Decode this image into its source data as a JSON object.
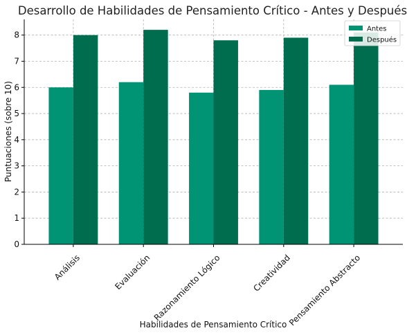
{
  "chart_data": {
    "type": "bar",
    "title": "Desarrollo de Habilidades de Pensamiento Crítico - Antes y Después",
    "xlabel": "Habilidades de Pensamiento Crítico",
    "ylabel": "Puntuaciones (sobre 10)",
    "categories": [
      "Análisis",
      "Evaluación",
      "Razonamiento Lógico",
      "Creatividad",
      "Pensamiento Abstracto"
    ],
    "series": [
      {
        "name": "Antes",
        "values": [
          6.0,
          6.2,
          5.8,
          5.9,
          6.1
        ],
        "color": "#009474"
      },
      {
        "name": "Después",
        "values": [
          8.0,
          8.2,
          7.8,
          7.9,
          8.1
        ],
        "color": "#006e4e"
      }
    ],
    "ylim": [
      0,
      8.6
    ],
    "yticks": [
      0,
      1,
      2,
      3,
      4,
      5,
      6,
      7,
      8
    ],
    "grid": true,
    "legend": "top-right"
  }
}
